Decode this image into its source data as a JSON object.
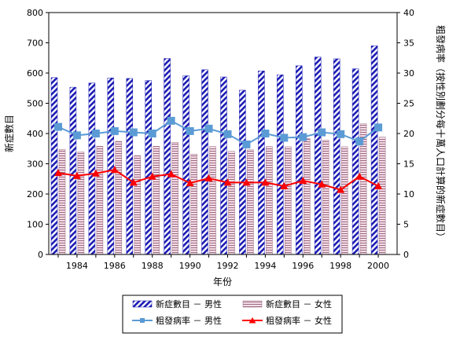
{
  "chart_data": {
    "type": "bar",
    "title": "",
    "xlabel": "年份",
    "ylabel_left": "新症數目",
    "ylabel_right": "粗發病率（按性別劃分每十萬人口計算的新症數目）",
    "ylim_left": [
      0,
      800
    ],
    "ylim_right": [
      0,
      40
    ],
    "yticks_left": [
      0,
      100,
      200,
      300,
      400,
      500,
      600,
      700,
      800
    ],
    "yticks_right": [
      0,
      5,
      10,
      15,
      20,
      25,
      30,
      35,
      40
    ],
    "categories": [
      "1983",
      "1984",
      "1985",
      "1986",
      "1987",
      "1988",
      "1989",
      "1990",
      "1991",
      "1992",
      "1993",
      "1994",
      "1995",
      "1996",
      "1997",
      "1998",
      "1999",
      "2000"
    ],
    "xtick_labels_shown": [
      "1984",
      "1986",
      "1988",
      "1990",
      "1992",
      "1994",
      "1996",
      "1998",
      "2000"
    ],
    "series": [
      {
        "name": "新症數目 － 男性",
        "kind": "bar",
        "axis": "left",
        "color": "#1f1fbf",
        "values": [
          585,
          553,
          567,
          584,
          582,
          575,
          648,
          591,
          611,
          587,
          543,
          607,
          594,
          624,
          653,
          647,
          614,
          690
        ]
      },
      {
        "name": "新症數目 － 女性",
        "kind": "bar",
        "axis": "left",
        "color": "#c0a0b0",
        "values": [
          347,
          339,
          358,
          374,
          327,
          358,
          371,
          332,
          357,
          341,
          346,
          357,
          356,
          383,
          378,
          356,
          432,
          388
        ]
      },
      {
        "name": "粗發病率 － 男性",
        "kind": "line",
        "axis": "right",
        "color": "#5b9bd5",
        "values": [
          21.1,
          19.7,
          20.0,
          20.4,
          20.2,
          20.0,
          22.1,
          20.4,
          20.8,
          19.9,
          18.2,
          20.0,
          19.3,
          19.4,
          20.2,
          19.9,
          18.7,
          21.0
        ]
      },
      {
        "name": "粗發病率 － 女性",
        "kind": "line",
        "axis": "right",
        "color": "#ff0000",
        "values": [
          13.5,
          13.0,
          13.4,
          14.0,
          11.9,
          12.9,
          13.3,
          11.8,
          12.6,
          11.9,
          11.9,
          11.9,
          11.3,
          12.2,
          11.6,
          10.7,
          12.9,
          11.3
        ]
      }
    ],
    "grid": false,
    "legend_position": "bottom"
  }
}
